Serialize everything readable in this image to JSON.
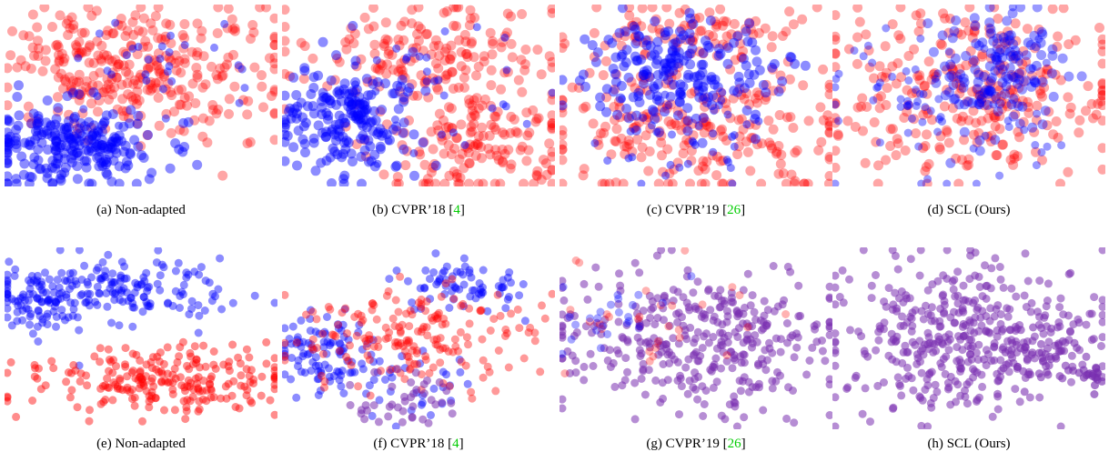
{
  "colors": {
    "domain_a": "#ff0000",
    "domain_b": "#0000ff",
    "mixed": "#7a2fb0",
    "ref_link": "#00cc00"
  },
  "panels": [
    {
      "letter": "(a)",
      "name": "Non-adapted",
      "ref": ""
    },
    {
      "letter": "(b)",
      "name": "CVPR’18",
      "ref": "4"
    },
    {
      "letter": "(c)",
      "name": "CVPR’19",
      "ref": "26"
    },
    {
      "letter": "(d)",
      "name": "SCL (Ours)",
      "ref": ""
    },
    {
      "letter": "(e)",
      "name": "Non-adapted",
      "ref": ""
    },
    {
      "letter": "(f)",
      "name": "CVPR’18",
      "ref": "4"
    },
    {
      "letter": "(g)",
      "name": "CVPR’19",
      "ref": "26"
    },
    {
      "letter": "(h)",
      "name": "SCL (Ours)",
      "ref": ""
    }
  ]
}
